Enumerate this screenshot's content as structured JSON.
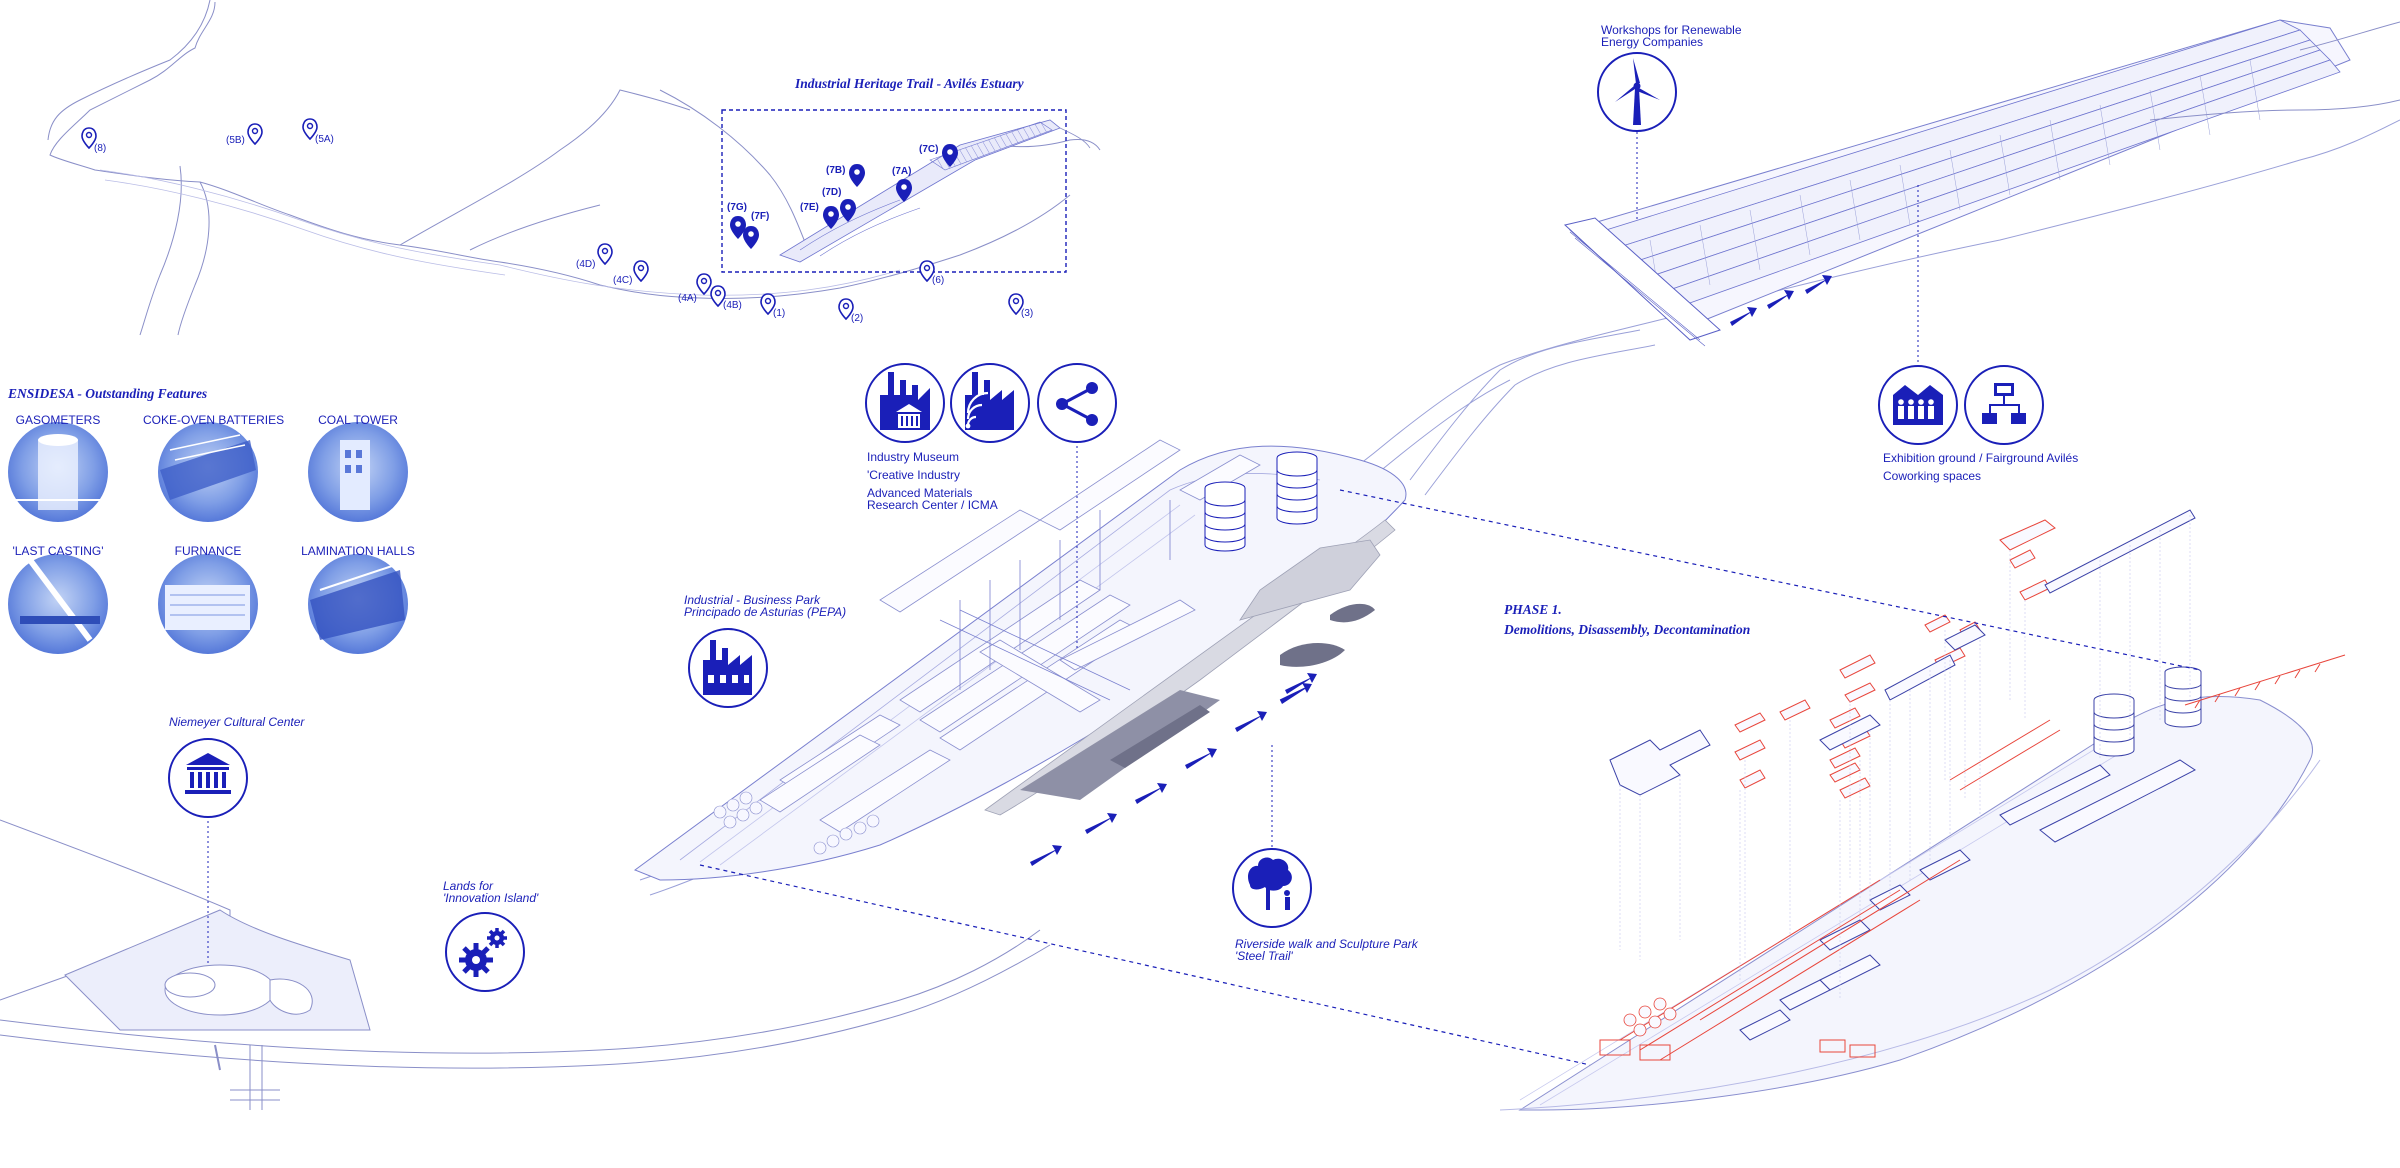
{
  "trail": {
    "title": "Industrial Heritage Trail - Avilés Estuary",
    "pins": [
      {
        "id": "p8",
        "label": "(8)",
        "bold": false
      },
      {
        "id": "p5b",
        "label": "(5B)",
        "bold": false
      },
      {
        "id": "p5a",
        "label": "(5A)",
        "bold": false
      },
      {
        "id": "p4d",
        "label": "(4D)",
        "bold": false
      },
      {
        "id": "p4c",
        "label": "(4C)",
        "bold": false
      },
      {
        "id": "p4a",
        "label": "(4A)",
        "bold": false
      },
      {
        "id": "p4b",
        "label": "(4B)",
        "bold": false
      },
      {
        "id": "p1",
        "label": "(1)",
        "bold": false
      },
      {
        "id": "p2",
        "label": "(2)",
        "bold": false
      },
      {
        "id": "p6",
        "label": "(6)",
        "bold": false
      },
      {
        "id": "p3",
        "label": "(3)",
        "bold": false
      },
      {
        "id": "p7c",
        "label": "(7C)",
        "bold": true
      },
      {
        "id": "p7b",
        "label": "(7B)",
        "bold": true
      },
      {
        "id": "p7a",
        "label": "(7A)",
        "bold": true
      },
      {
        "id": "p7d",
        "label": "(7D)",
        "bold": true
      },
      {
        "id": "p7e",
        "label": "(7E)",
        "bold": true
      },
      {
        "id": "p7g",
        "label": "(7G)",
        "bold": true
      },
      {
        "id": "p7f",
        "label": "(7F)",
        "bold": true
      }
    ]
  },
  "features": {
    "title": "ENSIDESA - Outstanding Features",
    "items": [
      {
        "label": "GASOMETERS"
      },
      {
        "label": "COKE-OVEN BATTERIES"
      },
      {
        "label": "COAL TOWER"
      },
      {
        "label": "'LAST CASTING'"
      },
      {
        "label": "FURNANCE"
      },
      {
        "label": "LAMINATION HALLS"
      }
    ]
  },
  "labels": {
    "industry_museum": "Industry Museum",
    "creative_industry": "'Creative Industry",
    "icma_1": "Advanced Materials",
    "icma_2": "Research Center / ICMA",
    "pepa_1": "Industrial - Business Park",
    "pepa_2": "Principado de Asturias (PEPA)",
    "niemeyer": "Niemeyer Cultural Center",
    "lands_1": "Lands for",
    "lands_2": "'Innovation Island'",
    "riverside_1": "Riverside walk and Sculpture Park",
    "riverside_2": "'Steel Trail'",
    "workshops_1": "Workshops for Renewable",
    "workshops_2": "Energy Companies",
    "exhibition": "Exhibition ground / Fairground Avilés",
    "coworking": "Coworking spaces",
    "phase_1": "PHASE 1.",
    "phase_2": "Demolitions, Disassembly, Decontamination"
  },
  "icons": {
    "museum": "factory-museum-icon",
    "creative": "factory-wifi-icon",
    "share": "share-icon",
    "pepa": "factory-icon",
    "niemeyer": "classical-building-icon",
    "innovation": "gears-icon",
    "riverside": "tree-person-icon",
    "wind": "wind-turbine-icon",
    "people": "people-crowd-icon",
    "network": "network-icon"
  },
  "colors": {
    "accent": "#1a1fb8",
    "line": "#3b42c8",
    "light": "#c9ccf0",
    "fill": "#e9eafa",
    "demolition": "#e8463c"
  }
}
